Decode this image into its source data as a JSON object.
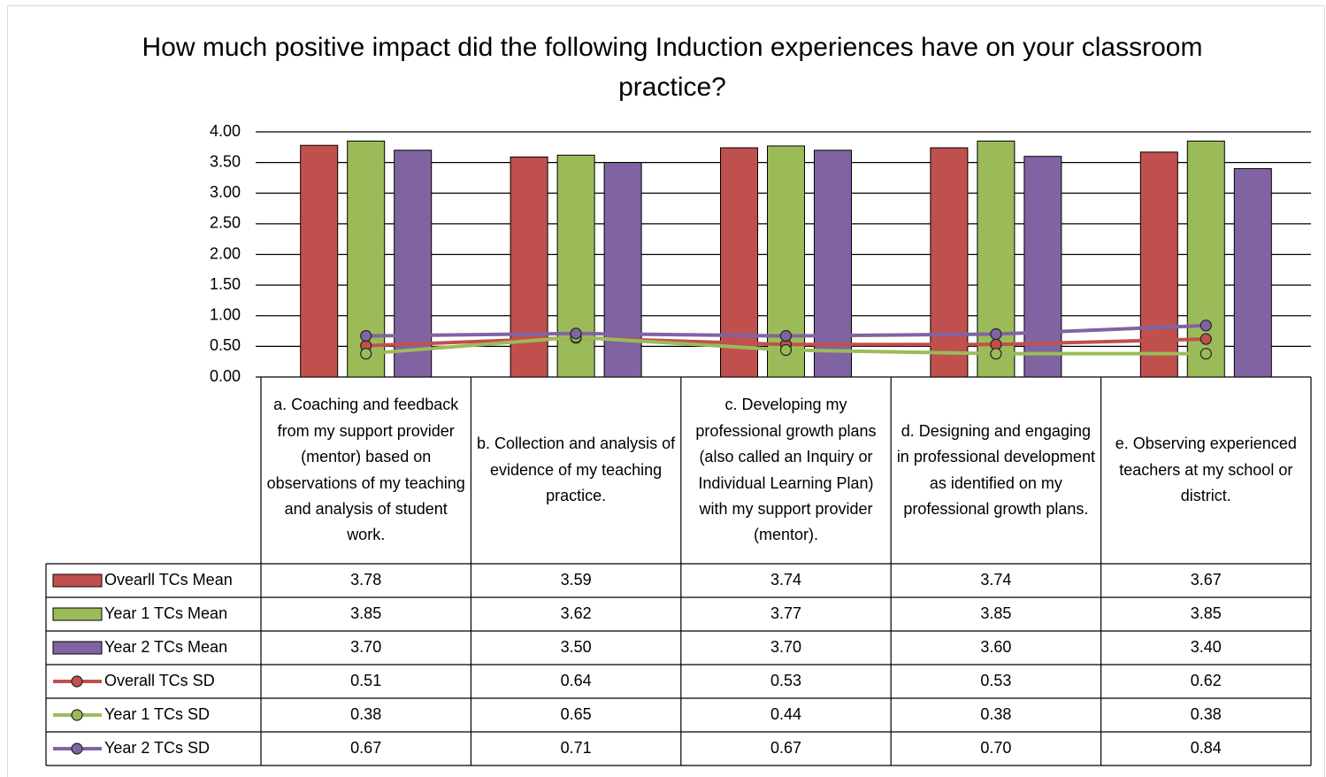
{
  "chart_data": {
    "type": "bar",
    "title": "How much positive impact did the following Induction experiences have on your classroom practice?",
    "categories": [
      "a. Coaching and feedback from my support provider (mentor) based on observations of my teaching and analysis of student work.",
      "b. Collection and analysis of evidence of my teaching practice.",
      "c. Developing my professional growth plans (also called an Inquiry or Individual Learning Plan) with my support provider (mentor).",
      "d. Designing and engaging in professional development as identified on my professional growth plans.",
      "e. Observing experienced teachers at my school or district."
    ],
    "series": [
      {
        "name": "Ovearll TCs Mean",
        "type": "bar",
        "color": "#c0504d",
        "values": [
          3.78,
          3.59,
          3.74,
          3.74,
          3.67
        ],
        "value_labels": [
          "3.78",
          "3.59",
          "3.74",
          "3.74",
          "3.67"
        ]
      },
      {
        "name": "Year 1 TCs Mean",
        "type": "bar",
        "color": "#9bbb59",
        "values": [
          3.85,
          3.62,
          3.77,
          3.85,
          3.85
        ],
        "value_labels": [
          "3.85",
          "3.62",
          "3.77",
          "3.85",
          "3.85"
        ]
      },
      {
        "name": "Year 2 TCs Mean",
        "type": "bar",
        "color": "#8064a2",
        "values": [
          3.7,
          3.5,
          3.7,
          3.6,
          3.4
        ],
        "value_labels": [
          "3.70",
          "3.50",
          "3.70",
          "3.60",
          "3.40"
        ]
      },
      {
        "name": "Overall TCs SD",
        "type": "line",
        "color": "#c0504d",
        "values": [
          0.51,
          0.64,
          0.53,
          0.53,
          0.62
        ],
        "value_labels": [
          "0.51",
          "0.64",
          "0.53",
          "0.53",
          "0.62"
        ]
      },
      {
        "name": "Year 1 TCs SD",
        "type": "line",
        "color": "#9bbb59",
        "values": [
          0.38,
          0.65,
          0.44,
          0.38,
          0.38
        ],
        "value_labels": [
          "0.38",
          "0.65",
          "0.44",
          "0.38",
          "0.38"
        ]
      },
      {
        "name": "Year 2 TCs SD",
        "type": "line",
        "color": "#8064a2",
        "values": [
          0.67,
          0.71,
          0.67,
          0.7,
          0.84
        ],
        "value_labels": [
          "0.67",
          "0.71",
          "0.67",
          "0.70",
          "0.84"
        ]
      }
    ],
    "ylim": [
      0,
      4
    ],
    "yticks": [
      {
        "value": 0,
        "label": "0.00"
      },
      {
        "value": 0.5,
        "label": "0.50"
      },
      {
        "value": 1,
        "label": "1.00"
      },
      {
        "value": 1.5,
        "label": "1.50"
      },
      {
        "value": 2,
        "label": "2.00"
      },
      {
        "value": 2.5,
        "label": "2.50"
      },
      {
        "value": 3,
        "label": "3.00"
      },
      {
        "value": 3.5,
        "label": "3.50"
      },
      {
        "value": 4,
        "label": "4.00"
      }
    ],
    "grid": true,
    "data_table": true
  }
}
